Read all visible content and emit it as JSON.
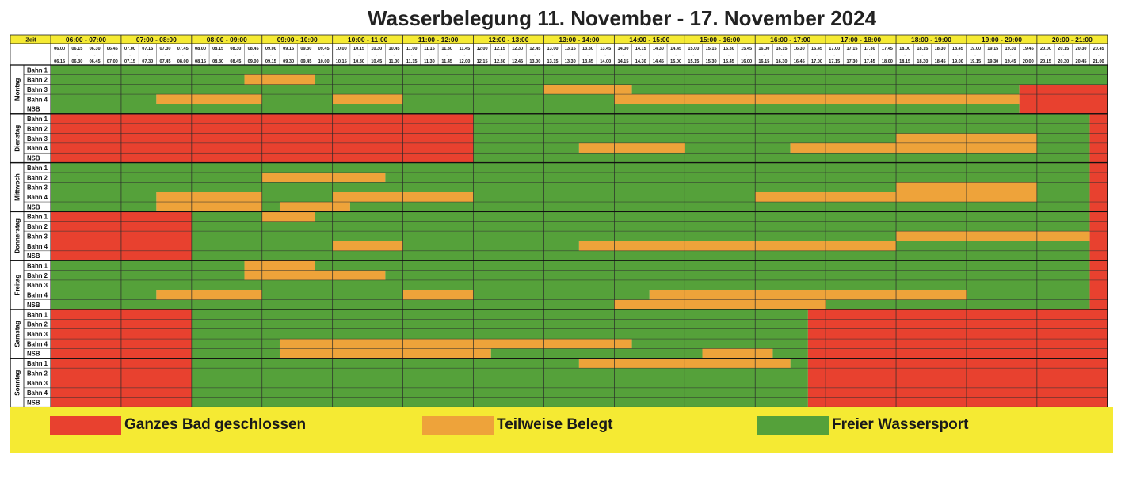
{
  "title": "Wasserbelegung 11. November - 17. November 2024",
  "header": {
    "zeit_label": "Zeit",
    "hours": [
      "06:00 - 07:00",
      "07:00 - 08:00",
      "08:00 - 09:00",
      "09:00 - 10:00",
      "10:00 - 11:00",
      "11:00 - 12:00",
      "12:00 - 13:00",
      "13:00 - 14:00",
      "14:00 - 15:00",
      "15:00 - 16:00",
      "16:00 - 17:00",
      "17:00 - 18:00",
      "18:00 - 19:00",
      "19:00 - 20:00",
      "20:00 - 21:00"
    ],
    "slot_starts": [
      "06.00",
      "06.15",
      "06.30",
      "06.45",
      "07.00",
      "07.15",
      "07.30",
      "07.45",
      "08.00",
      "08.15",
      "08.30",
      "08.45",
      "09.00",
      "09.15",
      "09.30",
      "09.45",
      "10.00",
      "10.15",
      "10.30",
      "10.45",
      "11.00",
      "11.15",
      "11.30",
      "11.45",
      "12.00",
      "12.15",
      "12.30",
      "12.45",
      "13.00",
      "13.15",
      "13.30",
      "13.45",
      "14.00",
      "14.15",
      "14.30",
      "14.45",
      "15.00",
      "15.15",
      "15.30",
      "15.45",
      "16.00",
      "16.15",
      "16.30",
      "16.45",
      "17.00",
      "17.15",
      "17.30",
      "17.45",
      "18.00",
      "18.15",
      "18.30",
      "18.45",
      "19.00",
      "19.15",
      "19.30",
      "19.45",
      "20.00",
      "20.15",
      "20.30",
      "20.45"
    ],
    "slot_ends": [
      "06.15",
      "06.30",
      "06.45",
      "07.00",
      "07.15",
      "07.30",
      "07.45",
      "08.00",
      "08.15",
      "08.30",
      "08.45",
      "09.00",
      "09.15",
      "09.30",
      "09.45",
      "10.00",
      "10.15",
      "10.30",
      "10.45",
      "11.00",
      "11.15",
      "11.30",
      "11.45",
      "12.00",
      "12.15",
      "12.30",
      "12.45",
      "13.00",
      "13.15",
      "13.30",
      "13.45",
      "14.00",
      "14.15",
      "14.30",
      "14.45",
      "15.00",
      "15.15",
      "15.30",
      "15.45",
      "16.00",
      "16.15",
      "16.30",
      "16.45",
      "17.00",
      "17.15",
      "17.30",
      "17.45",
      "18.00",
      "18.15",
      "18.30",
      "18.45",
      "19.00",
      "19.15",
      "19.30",
      "19.45",
      "20.00",
      "20.15",
      "20.30",
      "20.45",
      "21.00"
    ],
    "slot_separator": "-"
  },
  "lanes": [
    "Bahn 1",
    "Bahn 2",
    "Bahn 3",
    "Bahn 4",
    "NSB"
  ],
  "colors": {
    "closed": "#e8412f",
    "partial": "#eea33a",
    "free": "#55a13a",
    "header_yellow": "#f5ea33"
  },
  "days": [
    {
      "name": "Montag",
      "rows": [
        [
          [
            "F",
            0,
            60
          ]
        ],
        [
          [
            "F",
            0,
            11
          ],
          [
            "P",
            11,
            15
          ],
          [
            "F",
            15,
            60
          ]
        ],
        [
          [
            "F",
            0,
            28
          ],
          [
            "P",
            28,
            33
          ],
          [
            "F",
            33,
            55
          ],
          [
            "C",
            55,
            60
          ]
        ],
        [
          [
            "F",
            0,
            6
          ],
          [
            "P",
            6,
            12
          ],
          [
            "F",
            12,
            16
          ],
          [
            "P",
            16,
            20
          ],
          [
            "F",
            20,
            32
          ],
          [
            "P",
            32,
            55
          ],
          [
            "C",
            55,
            60
          ]
        ],
        [
          [
            "F",
            0,
            55
          ],
          [
            "C",
            55,
            60
          ]
        ]
      ]
    },
    {
      "name": "Dienstag",
      "rows": [
        [
          [
            "C",
            0,
            24
          ],
          [
            "F",
            24,
            59
          ],
          [
            "C",
            59,
            60
          ]
        ],
        [
          [
            "C",
            0,
            24
          ],
          [
            "F",
            24,
            59
          ],
          [
            "C",
            59,
            60
          ]
        ],
        [
          [
            "C",
            0,
            24
          ],
          [
            "F",
            24,
            48
          ],
          [
            "P",
            48,
            56
          ],
          [
            "F",
            56,
            59
          ],
          [
            "C",
            59,
            60
          ]
        ],
        [
          [
            "C",
            0,
            24
          ],
          [
            "F",
            24,
            30
          ],
          [
            "P",
            30,
            36
          ],
          [
            "F",
            36,
            42
          ],
          [
            "P",
            42,
            56
          ],
          [
            "F",
            56,
            59
          ],
          [
            "C",
            59,
            60
          ]
        ],
        [
          [
            "C",
            0,
            24
          ],
          [
            "F",
            24,
            59
          ],
          [
            "C",
            59,
            60
          ]
        ]
      ]
    },
    {
      "name": "Mittwoch",
      "rows": [
        [
          [
            "F",
            0,
            59
          ],
          [
            "C",
            59,
            60
          ]
        ],
        [
          [
            "F",
            0,
            12
          ],
          [
            "P",
            12,
            19
          ],
          [
            "F",
            19,
            59
          ],
          [
            "C",
            59,
            60
          ]
        ],
        [
          [
            "F",
            0,
            48
          ],
          [
            "P",
            48,
            56
          ],
          [
            "F",
            56,
            59
          ],
          [
            "C",
            59,
            60
          ]
        ],
        [
          [
            "F",
            0,
            6
          ],
          [
            "P",
            6,
            12
          ],
          [
            "F",
            12,
            16
          ],
          [
            "P",
            16,
            24
          ],
          [
            "F",
            24,
            40
          ],
          [
            "P",
            40,
            56
          ],
          [
            "F",
            56,
            59
          ],
          [
            "C",
            59,
            60
          ]
        ],
        [
          [
            "F",
            0,
            6
          ],
          [
            "P",
            6,
            12
          ],
          [
            "F",
            12,
            13
          ],
          [
            "P",
            13,
            17
          ],
          [
            "F",
            17,
            59
          ],
          [
            "C",
            59,
            60
          ]
        ]
      ]
    },
    {
      "name": "Donnerstag",
      "rows": [
        [
          [
            "C",
            0,
            8
          ],
          [
            "F",
            8,
            12
          ],
          [
            "P",
            12,
            15
          ],
          [
            "F",
            15,
            59
          ],
          [
            "C",
            59,
            60
          ]
        ],
        [
          [
            "C",
            0,
            8
          ],
          [
            "F",
            8,
            59
          ],
          [
            "C",
            59,
            60
          ]
        ],
        [
          [
            "C",
            0,
            8
          ],
          [
            "F",
            8,
            48
          ],
          [
            "P",
            48,
            59
          ],
          [
            "C",
            59,
            60
          ]
        ],
        [
          [
            "C",
            0,
            8
          ],
          [
            "F",
            8,
            16
          ],
          [
            "P",
            16,
            20
          ],
          [
            "F",
            20,
            30
          ],
          [
            "P",
            30,
            48
          ],
          [
            "F",
            48,
            59
          ],
          [
            "C",
            59,
            60
          ]
        ],
        [
          [
            "C",
            0,
            8
          ],
          [
            "F",
            8,
            59
          ],
          [
            "C",
            59,
            60
          ]
        ]
      ]
    },
    {
      "name": "Freitag",
      "rows": [
        [
          [
            "F",
            0,
            11
          ],
          [
            "P",
            11,
            15
          ],
          [
            "F",
            15,
            59
          ],
          [
            "C",
            59,
            60
          ]
        ],
        [
          [
            "F",
            0,
            11
          ],
          [
            "P",
            11,
            19
          ],
          [
            "F",
            19,
            59
          ],
          [
            "C",
            59,
            60
          ]
        ],
        [
          [
            "F",
            0,
            59
          ],
          [
            "C",
            59,
            60
          ]
        ],
        [
          [
            "F",
            0,
            6
          ],
          [
            "P",
            6,
            12
          ],
          [
            "F",
            12,
            20
          ],
          [
            "P",
            20,
            24
          ],
          [
            "F",
            24,
            34
          ],
          [
            "P",
            34,
            52
          ],
          [
            "F",
            52,
            59
          ],
          [
            "C",
            59,
            60
          ]
        ],
        [
          [
            "F",
            0,
            32
          ],
          [
            "P",
            32,
            44
          ],
          [
            "F",
            44,
            59
          ],
          [
            "C",
            59,
            60
          ]
        ]
      ]
    },
    {
      "name": "Samstag",
      "rows": [
        [
          [
            "C",
            0,
            8
          ],
          [
            "F",
            8,
            43
          ],
          [
            "C",
            43,
            60
          ]
        ],
        [
          [
            "C",
            0,
            8
          ],
          [
            "F",
            8,
            43
          ],
          [
            "C",
            43,
            60
          ]
        ],
        [
          [
            "C",
            0,
            8
          ],
          [
            "F",
            8,
            43
          ],
          [
            "C",
            43,
            60
          ]
        ],
        [
          [
            "C",
            0,
            8
          ],
          [
            "F",
            8,
            13
          ],
          [
            "P",
            13,
            33
          ],
          [
            "F",
            33,
            43
          ],
          [
            "C",
            43,
            60
          ]
        ],
        [
          [
            "C",
            0,
            8
          ],
          [
            "F",
            8,
            13
          ],
          [
            "P",
            13,
            25
          ],
          [
            "F",
            25,
            37
          ],
          [
            "P",
            37,
            41
          ],
          [
            "F",
            41,
            43
          ],
          [
            "C",
            43,
            60
          ]
        ]
      ]
    },
    {
      "name": "Sonntag",
      "rows": [
        [
          [
            "C",
            0,
            8
          ],
          [
            "F",
            8,
            30
          ],
          [
            "P",
            30,
            42
          ],
          [
            "F",
            42,
            43
          ],
          [
            "C",
            43,
            60
          ]
        ],
        [
          [
            "C",
            0,
            8
          ],
          [
            "F",
            8,
            43
          ],
          [
            "C",
            43,
            60
          ]
        ],
        [
          [
            "C",
            0,
            8
          ],
          [
            "F",
            8,
            43
          ],
          [
            "C",
            43,
            60
          ]
        ],
        [
          [
            "C",
            0,
            8
          ],
          [
            "F",
            8,
            43
          ],
          [
            "C",
            43,
            60
          ]
        ],
        [
          [
            "C",
            0,
            8
          ],
          [
            "F",
            8,
            43
          ],
          [
            "C",
            43,
            60
          ]
        ]
      ]
    }
  ],
  "legend": [
    {
      "key": "closed",
      "label": "Ganzes Bad geschlossen"
    },
    {
      "key": "partial",
      "label": "Teilweise Belegt"
    },
    {
      "key": "free",
      "label": "Freier Wassersport"
    }
  ]
}
